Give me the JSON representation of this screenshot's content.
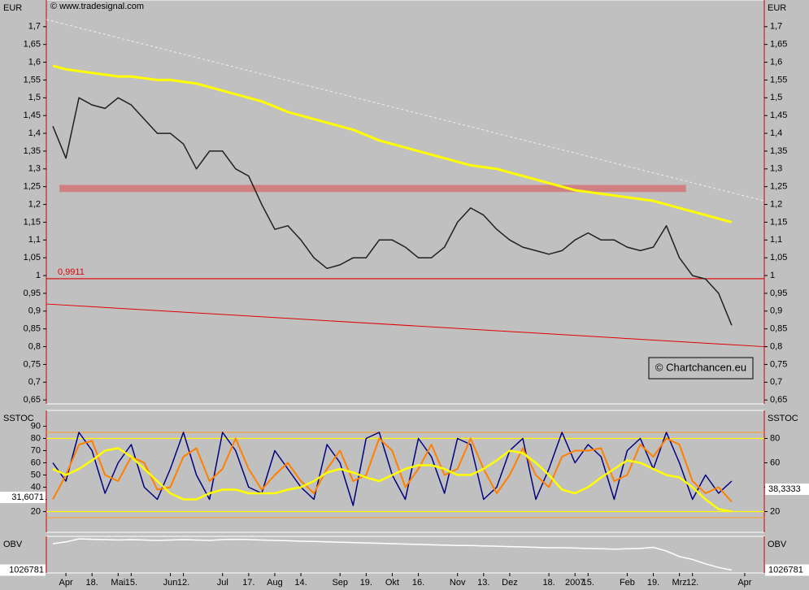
{
  "chart_data": [
    {
      "type": "line",
      "title": "© www.tradesignal.com",
      "ylabel": "EUR",
      "box_label": "© Chartchancen.eu",
      "categories": [
        null,
        "Apr",
        null,
        "18.",
        null,
        "Mai",
        "15.",
        null,
        null,
        "Jun",
        "12.",
        null,
        null,
        "Jul",
        null,
        "17.",
        null,
        "Aug",
        null,
        "14.",
        null,
        null,
        "Sep",
        null,
        "19.",
        null,
        "Okt",
        null,
        "16.",
        null,
        null,
        "Nov",
        null,
        "13.",
        null,
        "Dez",
        null,
        null,
        "18.",
        null,
        "2007",
        "15.",
        null,
        null,
        "Feb",
        null,
        "19.",
        null,
        "Mrz",
        "12.",
        null,
        null,
        null,
        "Apr",
        null
      ],
      "ylim": [
        0.639,
        1.775
      ],
      "yticks": [
        {
          "value": 1.7,
          "label": "1,7"
        },
        {
          "value": 1.65,
          "label": "1,65"
        },
        {
          "value": 1.6,
          "label": "1,6"
        },
        {
          "value": 1.55,
          "label": "1,55"
        },
        {
          "value": 1.5,
          "label": "1,5"
        },
        {
          "value": 1.45,
          "label": "1,45"
        },
        {
          "value": 1.4,
          "label": "1,4"
        },
        {
          "value": 1.35,
          "label": "1,35"
        },
        {
          "value": 1.3,
          "label": "1,3"
        },
        {
          "value": 1.25,
          "label": "1,25"
        },
        {
          "value": 1.2,
          "label": "1,2"
        },
        {
          "value": 1.15,
          "label": "1,15"
        },
        {
          "value": 1.1,
          "label": "1,1"
        },
        {
          "value": 1.05,
          "label": "1,05"
        },
        1,
        {
          "value": 0.95,
          "label": "0,95"
        },
        {
          "value": 0.9,
          "label": "0,9"
        },
        {
          "value": 0.85,
          "label": "0,85"
        },
        {
          "value": 0.8,
          "label": "0,8"
        },
        {
          "value": 0.75,
          "label": "0,75"
        },
        {
          "value": 0.7,
          "label": "0,7"
        },
        {
          "value": 0.65,
          "label": "0,65"
        }
      ],
      "zones": [
        {
          "from": 1.235,
          "to": 1.255,
          "color": "#d08080"
        }
      ],
      "levels": [
        {
          "value": 0.9911,
          "label": "0,9911",
          "color": "#e00000"
        }
      ],
      "trendlines": [
        {
          "from": [
            -0.5,
            1.72
          ],
          "to": [
            54.5,
            1.21
          ],
          "color": "#f0f0f0",
          "dashed": true
        },
        {
          "from": [
            -0.5,
            0.92
          ],
          "to": [
            54.5,
            0.8
          ],
          "color": "#e00000",
          "dashed": false
        }
      ],
      "series": [
        {
          "color": "#202020",
          "width": 1.5,
          "values": [
            1.42,
            1.33,
            1.5,
            1.48,
            1.47,
            1.5,
            1.48,
            1.44,
            1.4,
            1.4,
            1.37,
            1.3,
            1.35,
            1.35,
            1.3,
            1.28,
            1.2,
            1.13,
            1.14,
            1.1,
            1.05,
            1.02,
            1.03,
            1.05,
            1.05,
            1.1,
            1.1,
            1.08,
            1.05,
            1.05,
            1.08,
            1.15,
            1.19,
            1.17,
            1.13,
            1.1,
            1.08,
            1.07,
            1.06,
            1.07,
            1.1,
            1.12,
            1.1,
            1.1,
            1.08,
            1.07,
            1.08,
            1.14,
            1.05,
            1.0,
            0.99,
            0.95,
            0.86,
            null,
            null
          ]
        },
        {
          "color": "#ffff00",
          "width": 3,
          "values": [
            1.59,
            1.58,
            1.575,
            1.57,
            1.565,
            1.56,
            1.56,
            1.555,
            1.55,
            1.55,
            1.545,
            1.54,
            1.53,
            1.52,
            1.51,
            1.5,
            1.49,
            1.475,
            1.46,
            1.45,
            1.44,
            1.43,
            1.42,
            1.41,
            1.395,
            1.38,
            1.37,
            1.36,
            1.35,
            1.34,
            1.33,
            1.32,
            1.31,
            1.305,
            1.3,
            1.29,
            1.28,
            1.27,
            1.26,
            1.25,
            1.24,
            1.235,
            1.23,
            1.225,
            1.22,
            1.215,
            1.21,
            1.2,
            1.19,
            1.18,
            1.17,
            1.16,
            1.15,
            null,
            null
          ]
        }
      ]
    },
    {
      "type": "line",
      "ylabel": "SSTOC",
      "ylim": [
        3,
        103
      ],
      "yticks": [
        20,
        30,
        40,
        50,
        60,
        70,
        80,
        90
      ],
      "y2ticks": [
        20,
        40,
        60,
        80
      ],
      "levels": [
        {
          "value": 80,
          "color": "#ffff00"
        },
        {
          "value": 20,
          "color": "#ffff00"
        },
        {
          "value": 85,
          "color": "#f0a040"
        },
        {
          "value": 15,
          "color": "#f0a040"
        }
      ],
      "markers": [
        {
          "value": 31.6071,
          "label": "31,6071",
          "side": "left"
        },
        {
          "value": 38.3333,
          "label": "38,3333",
          "side": "right"
        }
      ],
      "series": [
        {
          "color": "#000080",
          "width": 1.5,
          "values": [
            60,
            45,
            85,
            70,
            35,
            60,
            75,
            40,
            30,
            55,
            85,
            50,
            30,
            85,
            70,
            40,
            35,
            70,
            55,
            40,
            30,
            75,
            60,
            25,
            80,
            85,
            50,
            30,
            80,
            65,
            35,
            80,
            75,
            30,
            40,
            70,
            80,
            30,
            55,
            85,
            60,
            75,
            65,
            30,
            70,
            80,
            55,
            85,
            60,
            30,
            50,
            35,
            45,
            null,
            null
          ]
        },
        {
          "color": "#ff8000",
          "width": 2,
          "values": [
            30,
            50,
            75,
            78,
            50,
            45,
            65,
            60,
            38,
            40,
            65,
            72,
            45,
            55,
            80,
            55,
            38,
            50,
            60,
            45,
            35,
            55,
            70,
            45,
            50,
            80,
            70,
            40,
            55,
            75,
            50,
            55,
            80,
            55,
            35,
            50,
            72,
            50,
            40,
            65,
            70,
            70,
            72,
            45,
            50,
            75,
            65,
            80,
            75,
            45,
            35,
            40,
            28,
            null,
            null
          ]
        },
        {
          "color": "#ffff00",
          "width": 2.5,
          "values": [
            55,
            50,
            55,
            62,
            70,
            72,
            65,
            55,
            45,
            35,
            30,
            30,
            35,
            38,
            38,
            35,
            35,
            35,
            38,
            40,
            45,
            52,
            55,
            52,
            48,
            45,
            50,
            55,
            58,
            58,
            55,
            50,
            50,
            55,
            62,
            70,
            68,
            60,
            50,
            38,
            35,
            40,
            48,
            55,
            62,
            60,
            55,
            50,
            48,
            40,
            30,
            22,
            20,
            null,
            null
          ]
        }
      ]
    },
    {
      "type": "line",
      "ylabel": "OBV",
      "ylim": [
        950000,
        1950000
      ],
      "markers": [
        {
          "value": 1026781,
          "side": "left"
        },
        {
          "value": 1026781,
          "side": "right"
        }
      ],
      "series": [
        {
          "color": "#ffffff",
          "width": 1.5,
          "values": [
            1750000,
            1800000,
            1880000,
            1870000,
            1860000,
            1850000,
            1860000,
            1850000,
            1840000,
            1850000,
            1860000,
            1850000,
            1840000,
            1860000,
            1870000,
            1860000,
            1850000,
            1840000,
            1830000,
            1820000,
            1810000,
            1800000,
            1790000,
            1780000,
            1770000,
            1760000,
            1750000,
            1740000,
            1730000,
            1720000,
            1710000,
            1700000,
            1700000,
            1690000,
            1680000,
            1670000,
            1660000,
            1650000,
            1640000,
            1640000,
            1630000,
            1620000,
            1610000,
            1600000,
            1610000,
            1620000,
            1650000,
            1550000,
            1400000,
            1320000,
            1200000,
            1100000,
            1026781,
            null,
            null
          ]
        }
      ]
    }
  ]
}
